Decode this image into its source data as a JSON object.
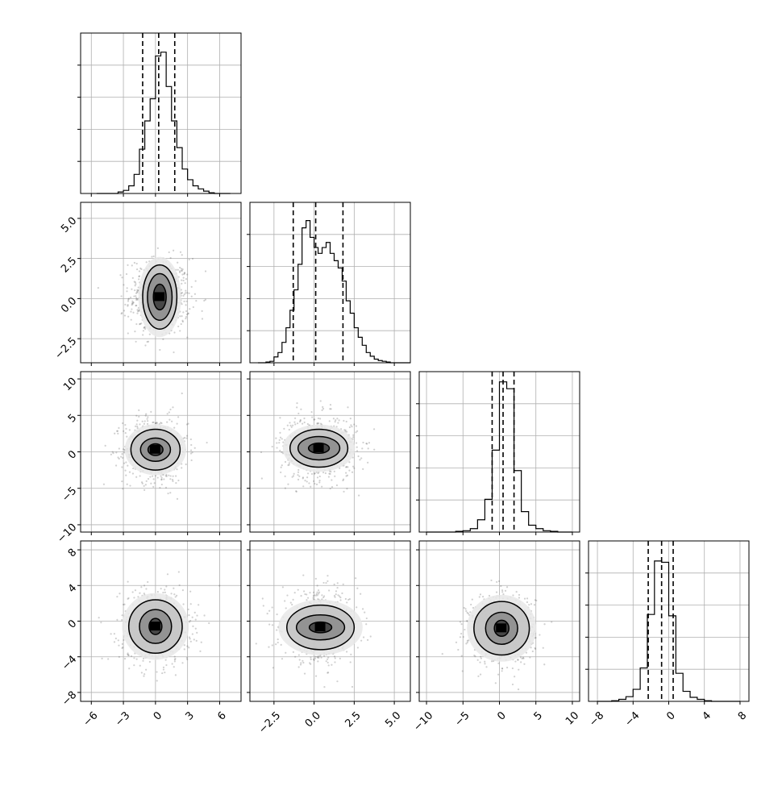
{
  "chart_data": {
    "type": "corner",
    "grid": true,
    "n_params": 4,
    "variables": [
      {
        "index": 0,
        "axis_range": [
          -7,
          8
        ],
        "tick_values": [
          -6,
          -3,
          0,
          3,
          6
        ],
        "tick_labels": [
          "−6",
          "−3",
          "0",
          "3",
          "6"
        ],
        "quantiles": [
          -1.2,
          0.3,
          1.8
        ],
        "histogram": {
          "bin_edges": [
            -5.5,
            -5.0,
            -4.5,
            -4.0,
            -3.5,
            -3.0,
            -2.5,
            -2.0,
            -1.5,
            -1.0,
            -0.5,
            0.0,
            0.5,
            1.0,
            1.5,
            2.0,
            2.5,
            3.0,
            3.5,
            4.0,
            4.5,
            5.0,
            5.5,
            6.0,
            6.5,
            7.0
          ],
          "counts": [
            0,
            0,
            0,
            0,
            2,
            4,
            10,
            25,
            58,
            95,
            124,
            180,
            185,
            140,
            95,
            60,
            32,
            18,
            10,
            6,
            3,
            1,
            0,
            0,
            0
          ],
          "ymax": 210
        }
      },
      {
        "index": 1,
        "axis_range": [
          -4,
          6
        ],
        "tick_values": [
          -2.5,
          0.0,
          2.5,
          5.0
        ],
        "tick_labels": [
          "−2.5",
          "0.0",
          "2.5",
          "5.0"
        ],
        "quantiles": [
          -1.3,
          0.1,
          1.8
        ],
        "histogram": {
          "bin_edges": [
            -3.5,
            -3.25,
            -3.0,
            -2.75,
            -2.5,
            -2.25,
            -2.0,
            -1.75,
            -1.5,
            -1.25,
            -1.0,
            -0.75,
            -0.5,
            -0.25,
            0.0,
            0.25,
            0.5,
            0.75,
            1.0,
            1.25,
            1.5,
            1.75,
            2.0,
            2.25,
            2.5,
            2.75,
            3.0,
            3.25,
            3.5,
            3.75,
            4.0,
            4.25,
            4.5,
            4.75,
            5.0,
            5.25,
            5.5,
            5.75,
            6.0
          ],
          "counts": [
            0,
            0,
            1,
            2,
            8,
            14,
            28,
            48,
            72,
            100,
            135,
            185,
            195,
            172,
            158,
            150,
            158,
            165,
            150,
            140,
            130,
            112,
            85,
            68,
            48,
            35,
            24,
            14,
            9,
            5,
            3,
            2,
            1,
            0,
            0,
            0,
            0,
            0
          ],
          "ymax": 220
        }
      },
      {
        "index": 2,
        "axis_range": [
          -11,
          11
        ],
        "tick_values": [
          -10,
          -5,
          0,
          5,
          10
        ],
        "tick_labels": [
          "−10",
          "−5",
          "0",
          "5",
          "10"
        ],
        "quantiles": [
          -1.0,
          0.5,
          2.0
        ],
        "histogram": {
          "bin_edges": [
            -10,
            -9,
            -8,
            -7,
            -6,
            -5,
            -4,
            -3,
            -2,
            -1,
            0,
            1,
            2,
            3,
            4,
            5,
            6,
            7,
            8,
            9,
            10
          ],
          "counts": [
            0,
            0,
            0,
            0,
            1,
            2,
            5,
            18,
            48,
            120,
            220,
            210,
            90,
            30,
            10,
            5,
            2,
            1,
            0,
            0
          ],
          "ymax": 235
        }
      },
      {
        "index": 3,
        "axis_range": [
          -9,
          9
        ],
        "tick_values": [
          -8,
          -4,
          0,
          4,
          8
        ],
        "tick_labels": [
          "−8",
          "−4",
          "0",
          "4",
          "8"
        ],
        "quantiles": [
          -2.3,
          -0.8,
          0.5
        ],
        "histogram": {
          "bin_edges": [
            -8,
            -7.2,
            -6.4,
            -5.6,
            -4.8,
            -4.0,
            -3.2,
            -2.4,
            -1.6,
            -0.8,
            0.0,
            0.8,
            1.6,
            2.4,
            3.2,
            4.0,
            4.8,
            5.6,
            6.4,
            7.2,
            8.0
          ],
          "counts": [
            0,
            0,
            1,
            3,
            7,
            18,
            50,
            130,
            210,
            208,
            128,
            42,
            15,
            6,
            3,
            1,
            0,
            0,
            0,
            0
          ],
          "ymax": 240
        }
      }
    ],
    "joint_panels": [
      {
        "row": 1,
        "col": 0,
        "contour_levels": [
          {
            "rx": 1.6,
            "ry": 2.0,
            "shift": 0.2
          },
          {
            "rx": 1.15,
            "ry": 1.45,
            "shift": 0.12
          },
          {
            "rx": 0.6,
            "ry": 0.8,
            "shift": 0.05
          }
        ],
        "center": [
          0.4,
          0.1
        ],
        "scatter_spread": [
          1.9,
          1.6
        ]
      },
      {
        "row": 2,
        "col": 0,
        "contour_levels": [
          {
            "rx": 2.3,
            "ry": 2.8
          },
          {
            "rx": 1.4,
            "ry": 1.6
          },
          {
            "rx": 0.7,
            "ry": 0.8
          }
        ],
        "center": [
          0.0,
          0.3
        ],
        "scatter_spread": [
          2.0,
          3.0
        ]
      },
      {
        "row": 2,
        "col": 1,
        "contour_levels": [
          {
            "rx": 1.8,
            "ry": 2.6
          },
          {
            "rx": 1.3,
            "ry": 1.6
          },
          {
            "rx": 0.65,
            "ry": 0.7
          }
        ],
        "center": [
          0.3,
          0.5
        ],
        "scatter_spread": [
          1.6,
          3.0
        ]
      },
      {
        "row": 3,
        "col": 0,
        "contour_levels": [
          {
            "rx": 2.5,
            "ry": 3.0
          },
          {
            "rx": 1.5,
            "ry": 1.9
          },
          {
            "rx": 0.6,
            "ry": 0.9
          }
        ],
        "center": [
          0.0,
          -0.6
        ],
        "scatter_spread": [
          2.2,
          2.8
        ]
      },
      {
        "row": 3,
        "col": 1,
        "contour_levels": [
          {
            "rx": 2.1,
            "ry": 2.5
          },
          {
            "rx": 1.5,
            "ry": 1.4
          },
          {
            "rx": 0.7,
            "ry": 0.6
          }
        ],
        "center": [
          0.4,
          -0.7
        ],
        "scatter_spread": [
          1.6,
          2.6
        ]
      },
      {
        "row": 3,
        "col": 2,
        "contour_levels": [
          {
            "rx": 3.8,
            "ry": 3.0
          },
          {
            "rx": 2.2,
            "ry": 1.8
          },
          {
            "rx": 1.0,
            "ry": 0.9
          }
        ],
        "center": [
          0.3,
          -0.8
        ],
        "scatter_spread": [
          3.0,
          2.6
        ]
      }
    ]
  }
}
